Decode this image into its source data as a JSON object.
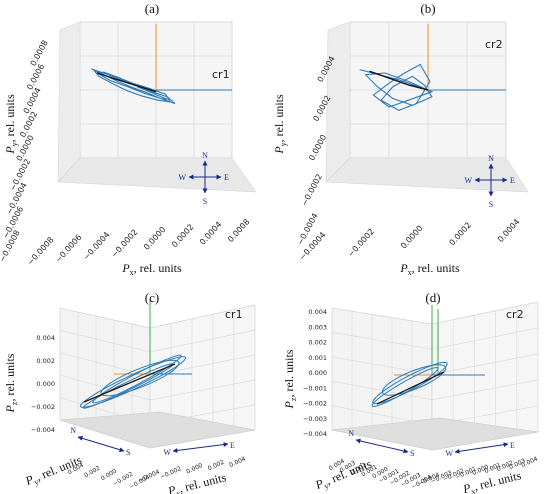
{
  "chart_data": [
    {
      "type": "line",
      "panel": "(a)",
      "label": "cr1",
      "xlabel": "P",
      "xlabel_sub": "x",
      "xlabel_units": ", rel. units",
      "ylabel": "P",
      "ylabel_sub": "y",
      "ylabel_units": ", rel. units",
      "xlim": [
        -0.0008,
        0.0008
      ],
      "ylim": [
        -0.0008,
        0.0008
      ],
      "xticks": [
        "−0.0008",
        "−0.0006",
        "−0.0004",
        "−0.0002",
        "0.0000",
        "0.0002",
        "0.0004",
        "0.0008"
      ],
      "yticks": [
        "−0.0008",
        "−0.0006",
        "−0.0004",
        "−0.0002",
        "0.0000",
        "0.0002",
        "0.0004",
        "0.0006",
        "0.0008"
      ],
      "compass": [
        "N",
        "S",
        "W",
        "E"
      ],
      "series": [
        {
          "color": "#2b7bb9",
          "x": [
            -0.00068,
            -0.00055,
            -0.0004,
            -0.00025,
            -0.0001,
            5e-05,
            0.0002,
            0.00012,
            -0.0001,
            -0.0003,
            -0.0005,
            -0.00066,
            -0.0006,
            -0.00045,
            -0.0003,
            -0.00015,
            2e-05,
            0.00015,
            0.0001,
            -0.0001,
            -0.00025,
            -0.0004,
            -0.00055,
            -0.00062,
            -0.00048,
            -0.0003,
            -0.00012,
            5e-05,
            0.00012,
            -5e-05,
            -0.0002
          ],
          "y": [
            0.00025,
            0.00018,
            0.0001,
            3e-05,
            -3e-05,
            -0.0001,
            -0.00016,
            -8e-05,
            0.0,
            9e-05,
            0.00018,
            0.00024,
            0.00016,
            7e-05,
            -1e-05,
            -7e-05,
            -0.00012,
            -0.00014,
            -5e-05,
            3e-05,
            8e-05,
            0.00015,
            0.00021,
            0.0002,
            0.00011,
            4e-05,
            -4e-05,
            -0.0001,
            -0.00011,
            -3e-05,
            4e-05
          ]
        },
        {
          "color": "#111111",
          "x": [
            -0.00062,
            -0.0004,
            -0.0002,
            0.0
          ],
          "y": [
            0.0002,
            0.00012,
            5e-05,
            -2e-05
          ]
        }
      ]
    },
    {
      "type": "line",
      "panel": "(b)",
      "label": "cr2",
      "xlabel": "P",
      "xlabel_sub": "x",
      "xlabel_units": ", rel. units",
      "ylabel": "P",
      "ylabel_sub": "y",
      "ylabel_units": ", rel. units",
      "xlim": [
        -0.0004,
        0.0004
      ],
      "ylim": [
        -0.0004,
        0.0004
      ],
      "xticks": [
        "−0.0004",
        "−0.0002",
        "0.0000",
        "0.0002",
        "0.0004"
      ],
      "yticks": [
        "−0.0004",
        "−0.0002",
        "0.0000",
        "0.0002",
        "0.0004"
      ],
      "compass": [
        "N",
        "S",
        "W",
        "E"
      ],
      "series": [
        {
          "color": "#2b7bb9",
          "x": [
            -0.00035,
            -0.00025,
            -0.00015,
            -5e-05,
            2e-05,
            -0.0001,
            -0.0002,
            -0.00028,
            -0.0002,
            -0.00012,
            -4e-05,
            1e-05,
            -6e-05,
            -0.00015,
            -0.00024,
            -0.00018,
            -8e-05,
            -2e-05,
            2e-05,
            -8e-05,
            -0.00018,
            -0.00026,
            -0.00032,
            -0.00022,
            -0.0001,
            0.0
          ],
          "y": [
            0.00012,
            9e-05,
            6e-05,
            2e-05,
            -1e-05,
            -6e-05,
            -0.0001,
            -3e-05,
            4e-05,
            0.0001,
            0.00015,
            5e-05,
            -8e-05,
            -0.00012,
            -6e-05,
            2e-05,
            8e-05,
            3e-05,
            -4e-05,
            -9e-05,
            -5e-05,
            2e-05,
            9e-05,
            0.0001,
            5e-05,
            0.0
          ]
        },
        {
          "color": "#111111",
          "x": [
            -0.0003,
            -0.0002,
            -0.0001,
            0.0
          ],
          "y": [
            0.00011,
            7e-05,
            3e-05,
            0.0
          ]
        }
      ]
    },
    {
      "type": "line",
      "panel": "(c)",
      "label": "cr1",
      "zlabel": "P",
      "zlabel_sub": "z",
      "zlabel_units": ", rel. units",
      "xlabel": "P",
      "xlabel_sub": "x",
      "xlabel_units": ", rel. units",
      "ylabel": "P",
      "ylabel_sub": "y",
      "ylabel_units": ", rel. units",
      "zlim": [
        -0.004,
        0.004
      ],
      "zticks": [
        "0.004",
        "0.002",
        "0.000",
        "−0.002",
        "−0.004"
      ],
      "xticks": [
        "−0.004",
        "−0.002",
        "0.000",
        "0.002",
        "0.004"
      ],
      "yticks": [
        "0.004",
        "0.002",
        "0.000",
        "−0.002",
        "−0.004"
      ],
      "compass": [
        "N",
        "S",
        "W",
        "E"
      ]
    },
    {
      "type": "line",
      "panel": "(d)",
      "label": "cr2",
      "zlabel": "P",
      "zlabel_sub": "z",
      "zlabel_units": ", rel. units",
      "xlabel": "P",
      "xlabel_sub": "x",
      "xlabel_units": ", rel. units",
      "ylabel": "P",
      "ylabel_sub": "y",
      "ylabel_units": ", rel. units",
      "zlim": [
        -0.004,
        0.004
      ],
      "zticks": [
        "0.004",
        "0.003",
        "0.002",
        "0.001",
        "0.000",
        "−0.001",
        "−0.002",
        "−0.003",
        "−0.004"
      ],
      "xticks": [
        "−0.004",
        "−0.003",
        "−0.002",
        "−0.001",
        "0.000",
        "0.001",
        "0.002",
        "0.003",
        "0.004"
      ],
      "yticks": [
        "0.004",
        "0.003",
        "0.002",
        "0.001",
        "0.000",
        "−0.001",
        "−0.002",
        "−0.003",
        "−0.004"
      ],
      "compass": [
        "N",
        "S",
        "W",
        "E"
      ]
    }
  ]
}
